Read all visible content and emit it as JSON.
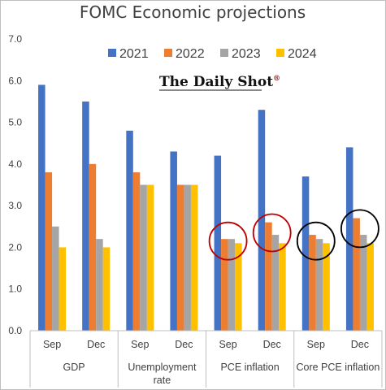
{
  "chart_data": {
    "type": "bar",
    "title": "FOMC Economic projections",
    "watermark": "The Daily Shot",
    "watermark_mark": "®",
    "ylim": [
      0,
      7
    ],
    "yticks": [
      "0.0",
      "1.0",
      "2.0",
      "3.0",
      "4.0",
      "5.0",
      "6.0",
      "7.0"
    ],
    "grid": false,
    "legend_position": "top",
    "categories": [
      "Sep",
      "Dec",
      "Sep",
      "Dec",
      "Sep",
      "Dec",
      "Sep",
      "Dec"
    ],
    "groups": [
      {
        "label_lines": [
          "GDP"
        ],
        "start": 0,
        "count": 2
      },
      {
        "label_lines": [
          "Unemployment",
          "rate"
        ],
        "start": 2,
        "count": 2
      },
      {
        "label_lines": [
          "PCE inflation"
        ],
        "start": 4,
        "count": 2
      },
      {
        "label_lines": [
          "Core PCE inflation"
        ],
        "start": 6,
        "count": 2
      }
    ],
    "series": [
      {
        "name": "2021",
        "color": "#4472C4",
        "values": [
          5.9,
          5.5,
          4.8,
          4.3,
          4.2,
          5.3,
          3.7,
          4.4
        ]
      },
      {
        "name": "2022",
        "color": "#ED7D31",
        "values": [
          3.8,
          4.0,
          3.8,
          3.5,
          2.2,
          2.6,
          2.3,
          2.7
        ]
      },
      {
        "name": "2023",
        "color": "#A5A5A5",
        "values": [
          2.5,
          2.2,
          3.5,
          3.5,
          2.2,
          2.3,
          2.2,
          2.3
        ]
      },
      {
        "name": "2024",
        "color": "#FFC000",
        "values": [
          2.0,
          2.0,
          3.5,
          3.5,
          2.1,
          2.1,
          2.1,
          2.1
        ]
      }
    ],
    "annotations": [
      {
        "shape": "circle",
        "color": "#C00000",
        "category_index": 4,
        "center_value": 2.15
      },
      {
        "shape": "circle",
        "color": "#C00000",
        "category_index": 5,
        "center_value": 2.35
      },
      {
        "shape": "circle",
        "color": "#000000",
        "category_index": 6,
        "center_value": 2.15
      },
      {
        "shape": "circle",
        "color": "#000000",
        "category_index": 7,
        "center_value": 2.45
      }
    ]
  }
}
